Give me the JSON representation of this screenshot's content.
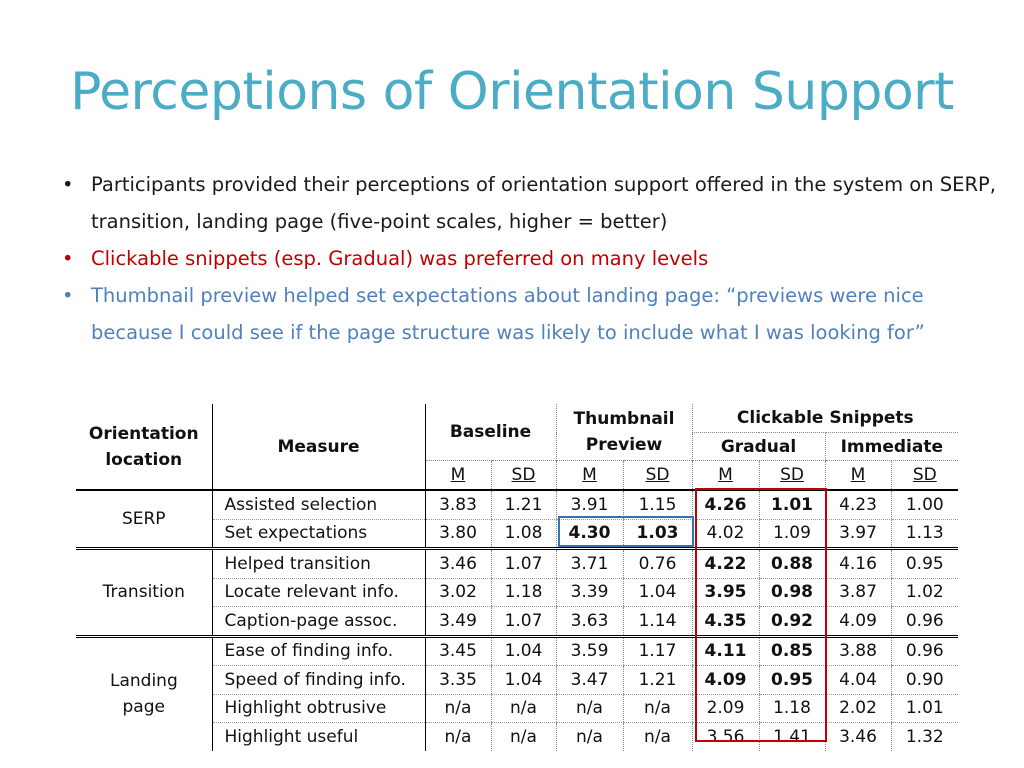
{
  "title": "Perceptions of Orientation Support",
  "bullets": [
    {
      "text": "Participants provided their perceptions of orientation support offered in the system on SERP, transition, landing page (five-point scales, higher = better)",
      "color": "#1a1a1a"
    },
    {
      "text": "Clickable snippets (esp. Gradual) was preferred on many levels",
      "color": "#c00000"
    },
    {
      "text": "Thumbnail preview helped set expectations about landing page: “previews were nice because I could see if the page structure was likely to include what I was looking for”",
      "color": "#4f81bd"
    }
  ],
  "bullet_symbol": "•",
  "table": {
    "headers": {
      "location": "Orientation location",
      "measure": "Measure",
      "baseline": "Baseline",
      "thumbnail": "Thumbnail Preview",
      "clickable": "Clickable Snippets",
      "gradual": "Gradual",
      "immediate": "Immediate",
      "m": "M",
      "sd": "SD"
    },
    "groups": [
      {
        "location": "SERP",
        "rows": [
          {
            "measure": "Assisted selection",
            "values": [
              "3.83",
              "1.21",
              "3.91",
              "1.15",
              "4.26",
              "1.01",
              "4.23",
              "1.00"
            ]
          },
          {
            "measure": "Set expectations",
            "values": [
              "3.80",
              "1.08",
              "4.30",
              "1.03",
              "4.02",
              "1.09",
              "3.97",
              "1.13"
            ]
          }
        ]
      },
      {
        "location": "Transition",
        "rows": [
          {
            "measure": "Helped transition",
            "values": [
              "3.46",
              "1.07",
              "3.71",
              "0.76",
              "4.22",
              "0.88",
              "4.16",
              "0.95"
            ]
          },
          {
            "measure": "Locate relevant info.",
            "values": [
              "3.02",
              "1.18",
              "3.39",
              "1.04",
              "3.95",
              "0.98",
              "3.87",
              "1.02"
            ]
          },
          {
            "measure": "Caption-page assoc.",
            "values": [
              "3.49",
              "1.07",
              "3.63",
              "1.14",
              "4.35",
              "0.92",
              "4.09",
              "0.96"
            ]
          }
        ]
      },
      {
        "location": "Landing page",
        "rows": [
          {
            "measure": "Ease of finding info.",
            "values": [
              "3.45",
              "1.04",
              "3.59",
              "1.17",
              "4.11",
              "0.85",
              "3.88",
              "0.96"
            ]
          },
          {
            "measure": "Speed of finding info.",
            "values": [
              "3.35",
              "1.04",
              "3.47",
              "1.21",
              "4.09",
              "0.95",
              "4.04",
              "0.90"
            ]
          },
          {
            "measure": "Highlight obtrusive",
            "values": [
              "n/a",
              "n/a",
              "n/a",
              "n/a",
              "2.09",
              "1.18",
              "2.02",
              "1.01"
            ]
          },
          {
            "measure": "Highlight useful",
            "values": [
              "n/a",
              "n/a",
              "n/a",
              "n/a",
              "3.56",
              "1.41",
              "3.46",
              "1.32"
            ]
          }
        ]
      }
    ],
    "bold_cells": [
      [
        0,
        0,
        4
      ],
      [
        0,
        0,
        5
      ],
      [
        0,
        1,
        2
      ],
      [
        0,
        1,
        3
      ],
      [
        1,
        0,
        4
      ],
      [
        1,
        0,
        5
      ],
      [
        1,
        1,
        4
      ],
      [
        1,
        1,
        5
      ],
      [
        1,
        2,
        4
      ],
      [
        1,
        2,
        5
      ],
      [
        2,
        0,
        4
      ],
      [
        2,
        0,
        5
      ],
      [
        2,
        1,
        4
      ],
      [
        2,
        1,
        5
      ]
    ],
    "highlight_colors": {
      "gradual_box": "#c00000",
      "thumbnail_box": "#2e75b6"
    }
  }
}
